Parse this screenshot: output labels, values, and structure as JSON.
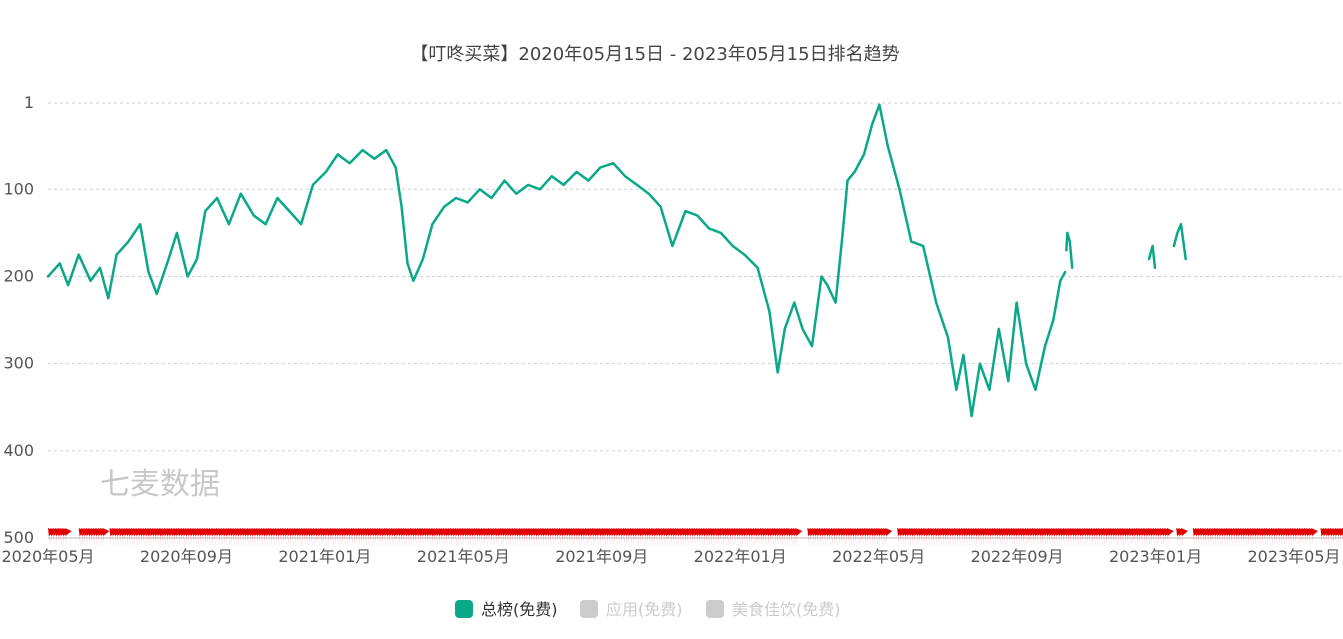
{
  "chart_data": {
    "type": "line",
    "title": "【叮咚买菜】2020年05月15日 - 2023年05月15日排名趋势",
    "watermark": "七麦数据",
    "y_axis": {
      "inverted": true,
      "min": 1,
      "max": 500,
      "ticks": [
        1,
        100,
        200,
        300,
        400,
        500
      ]
    },
    "x_axis": {
      "min": "2020-05-15",
      "max": "2023-05-15",
      "ticks": [
        "2020年05月",
        "2020年09月",
        "2021年01月",
        "2021年05月",
        "2021年09月",
        "2022年01月",
        "2022年05月",
        "2022年09月",
        "2023年01月",
        "2023年05月"
      ]
    },
    "grid": true,
    "legend_position": "bottom-center",
    "series": [
      {
        "name": "总榜(免费)",
        "color": "#0aa889",
        "active": true,
        "points": [
          [
            "2020-05-15",
            200
          ],
          [
            "2020-05-25",
            185
          ],
          [
            "2020-06-01",
            210
          ],
          [
            "2020-06-10",
            175
          ],
          [
            "2020-06-20",
            205
          ],
          [
            "2020-06-28",
            190
          ],
          [
            "2020-07-05",
            225
          ],
          [
            "2020-07-12",
            175
          ],
          [
            "2020-07-22",
            160
          ],
          [
            "2020-08-01",
            140
          ],
          [
            "2020-08-08",
            195
          ],
          [
            "2020-08-15",
            220
          ],
          [
            "2020-08-25",
            180
          ],
          [
            "2020-09-01",
            150
          ],
          [
            "2020-09-10",
            200
          ],
          [
            "2020-09-18",
            180
          ],
          [
            "2020-09-25",
            125
          ],
          [
            "2020-10-05",
            110
          ],
          [
            "2020-10-15",
            140
          ],
          [
            "2020-10-25",
            105
          ],
          [
            "2020-11-05",
            130
          ],
          [
            "2020-11-15",
            140
          ],
          [
            "2020-11-25",
            110
          ],
          [
            "2020-12-05",
            125
          ],
          [
            "2020-12-15",
            140
          ],
          [
            "2020-12-25",
            95
          ],
          [
            "2021-01-05",
            80
          ],
          [
            "2021-01-15",
            60
          ],
          [
            "2021-01-25",
            70
          ],
          [
            "2021-02-05",
            55
          ],
          [
            "2021-02-15",
            65
          ],
          [
            "2021-02-25",
            55
          ],
          [
            "2021-03-05",
            75
          ],
          [
            "2021-03-10",
            120
          ],
          [
            "2021-03-15",
            185
          ],
          [
            "2021-03-20",
            205
          ],
          [
            "2021-03-28",
            180
          ],
          [
            "2021-04-05",
            140
          ],
          [
            "2021-04-15",
            120
          ],
          [
            "2021-04-25",
            110
          ],
          [
            "2021-05-05",
            115
          ],
          [
            "2021-05-15",
            100
          ],
          [
            "2021-05-25",
            110
          ],
          [
            "2021-06-05",
            90
          ],
          [
            "2021-06-15",
            105
          ],
          [
            "2021-06-25",
            95
          ],
          [
            "2021-07-05",
            100
          ],
          [
            "2021-07-15",
            85
          ],
          [
            "2021-07-25",
            95
          ],
          [
            "2021-08-05",
            80
          ],
          [
            "2021-08-15",
            90
          ],
          [
            "2021-08-25",
            75
          ],
          [
            "2021-09-05",
            70
          ],
          [
            "2021-09-15",
            85
          ],
          [
            "2021-09-25",
            95
          ],
          [
            "2021-10-05",
            105
          ],
          [
            "2021-10-15",
            120
          ],
          [
            "2021-10-25",
            165
          ],
          [
            "2021-11-05",
            125
          ],
          [
            "2021-11-15",
            130
          ],
          [
            "2021-11-25",
            145
          ],
          [
            "2021-12-05",
            150
          ],
          [
            "2021-12-15",
            165
          ],
          [
            "2021-12-25",
            175
          ],
          [
            "2022-01-05",
            190
          ],
          [
            "2022-01-15",
            240
          ],
          [
            "2022-01-22",
            310
          ],
          [
            "2022-01-28",
            260
          ],
          [
            "2022-02-05",
            230
          ],
          [
            "2022-02-12",
            260
          ],
          [
            "2022-02-20",
            280
          ],
          [
            "2022-02-28",
            200
          ],
          [
            "2022-03-05",
            210
          ],
          [
            "2022-03-12",
            230
          ],
          [
            "2022-03-18",
            150
          ],
          [
            "2022-03-22",
            90
          ],
          [
            "2022-03-28",
            80
          ],
          [
            "2022-04-05",
            60
          ],
          [
            "2022-04-12",
            25
          ],
          [
            "2022-04-18",
            3
          ],
          [
            "2022-04-25",
            50
          ],
          [
            "2022-05-05",
            100
          ],
          [
            "2022-05-15",
            160
          ],
          [
            "2022-05-25",
            165
          ],
          [
            "2022-06-05",
            230
          ],
          [
            "2022-06-15",
            270
          ],
          [
            "2022-06-22",
            330
          ],
          [
            "2022-06-28",
            290
          ],
          [
            "2022-07-05",
            360
          ],
          [
            "2022-07-12",
            300
          ],
          [
            "2022-07-20",
            330
          ],
          [
            "2022-07-28",
            260
          ],
          [
            "2022-08-05",
            320
          ],
          [
            "2022-08-12",
            230
          ],
          [
            "2022-08-20",
            300
          ],
          [
            "2022-08-28",
            330
          ],
          [
            "2022-09-05",
            280
          ],
          [
            "2022-09-12",
            250
          ],
          [
            "2022-09-18",
            205
          ],
          [
            "2022-09-22",
            195
          ],
          null,
          [
            "2022-09-23",
            170
          ],
          [
            "2022-09-24",
            150
          ],
          [
            "2022-09-26",
            160
          ],
          [
            "2022-09-28",
            190
          ],
          null,
          [
            "2022-12-02",
            180
          ],
          [
            "2022-12-05",
            165
          ],
          [
            "2022-12-07",
            190
          ],
          null,
          [
            "2022-12-23",
            165
          ],
          [
            "2022-12-26",
            150
          ],
          [
            "2022-12-29",
            140
          ],
          [
            "2023-01-02",
            180
          ]
        ]
      },
      {
        "name": "应用(免费)",
        "color": "#cccccc",
        "active": false
      },
      {
        "name": "美食佳饮(免费)",
        "color": "#cccccc",
        "active": false
      }
    ],
    "bottom_flag_series": {
      "color": "#e00000",
      "value": 500,
      "gaps": [
        [
          "2020-05-30",
          "2020-06-08"
        ],
        [
          "2020-07-01",
          "2020-07-05"
        ],
        [
          "2022-02-08",
          "2022-02-14"
        ],
        [
          "2022-04-24",
          "2022-05-02"
        ],
        [
          "2022-12-18",
          "2022-12-24"
        ],
        [
          "2022-12-31",
          "2023-01-06"
        ],
        [
          "2023-04-20",
          "2023-04-25"
        ]
      ]
    }
  }
}
